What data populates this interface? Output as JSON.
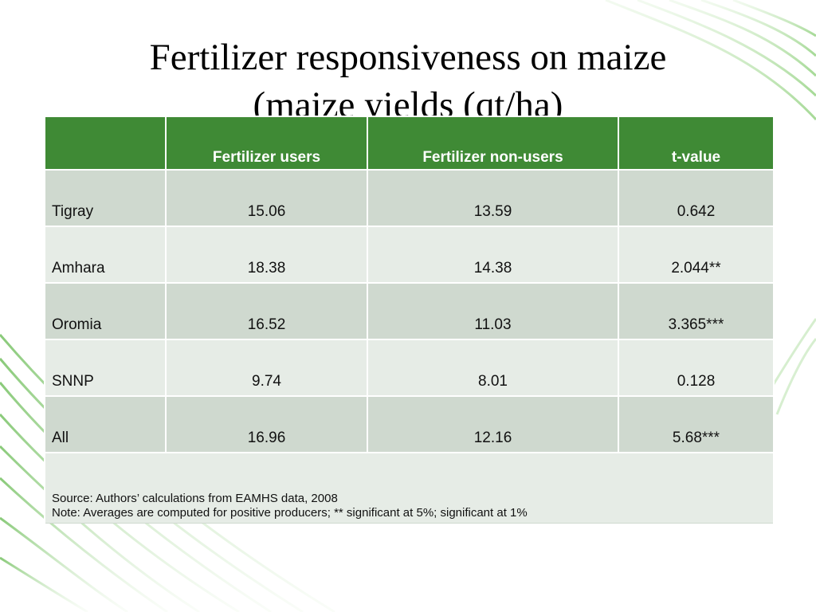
{
  "slide": {
    "title_line1": "Fertilizer responsiveness on maize",
    "title_line2": "(maize yields (qt/ha)"
  },
  "colors": {
    "header_bg": "#3f8a35",
    "row_dark": "#cfd9cf",
    "row_light": "#e6ece6",
    "accent_green": "#7cc46a"
  },
  "table": {
    "headers": [
      "",
      "Fertilizer users",
      "Fertilizer non-users",
      "t-value"
    ],
    "rows": [
      {
        "region": "Tigray",
        "users": "15.06",
        "non_users": "13.59",
        "t_value": "0.642"
      },
      {
        "region": "Amhara",
        "users": "18.38",
        "non_users": "14.38",
        "t_value": "2.044**"
      },
      {
        "region": "Oromia",
        "users": "16.52",
        "non_users": "11.03",
        "t_value": "3.365***"
      },
      {
        "region": "SNNP",
        "users": "9.74",
        "non_users": "8.01",
        "t_value": "0.128"
      },
      {
        "region": "All",
        "users": "16.96",
        "non_users": "12.16",
        "t_value": "5.68***"
      }
    ],
    "source": "Source: Authors’ calculations from EAMHS data, 2008",
    "note": "Note: Averages are computed for positive  producers; ** significant at 5%; significant at 1%"
  }
}
